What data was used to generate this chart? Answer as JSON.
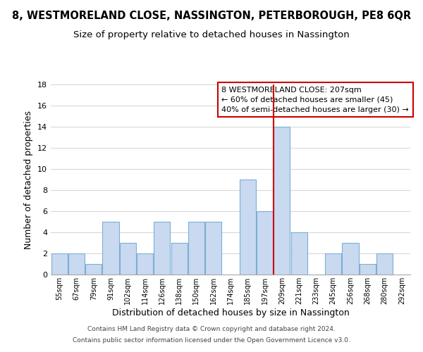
{
  "title": "8, WESTMORELAND CLOSE, NASSINGTON, PETERBOROUGH, PE8 6QR",
  "subtitle": "Size of property relative to detached houses in Nassington",
  "xlabel": "Distribution of detached houses by size in Nassington",
  "ylabel": "Number of detached properties",
  "bin_labels": [
    "55sqm",
    "67sqm",
    "79sqm",
    "91sqm",
    "102sqm",
    "114sqm",
    "126sqm",
    "138sqm",
    "150sqm",
    "162sqm",
    "174sqm",
    "185sqm",
    "197sqm",
    "209sqm",
    "221sqm",
    "233sqm",
    "245sqm",
    "256sqm",
    "268sqm",
    "280sqm",
    "292sqm"
  ],
  "bar_values": [
    2,
    2,
    1,
    5,
    3,
    2,
    5,
    3,
    5,
    5,
    0,
    9,
    6,
    14,
    4,
    0,
    2,
    3,
    1,
    2,
    0
  ],
  "bar_color": "#c9d9f0",
  "bar_edge_color": "#7bafd4",
  "vline_color": "#cc0000",
  "ylim": [
    0,
    18
  ],
  "yticks": [
    0,
    2,
    4,
    6,
    8,
    10,
    12,
    14,
    16,
    18
  ],
  "annotation_text": "8 WESTMORELAND CLOSE: 207sqm\n← 60% of detached houses are smaller (45)\n40% of semi-detached houses are larger (30) →",
  "annotation_box_color": "#ffffff",
  "annotation_border_color": "#cc0000",
  "footer1": "Contains HM Land Registry data © Crown copyright and database right 2024.",
  "footer2": "Contains public sector information licensed under the Open Government Licence v3.0.",
  "bg_color": "#ffffff",
  "grid_color": "#cccccc",
  "title_fontsize": 10.5,
  "subtitle_fontsize": 9.5,
  "vline_index": 13
}
